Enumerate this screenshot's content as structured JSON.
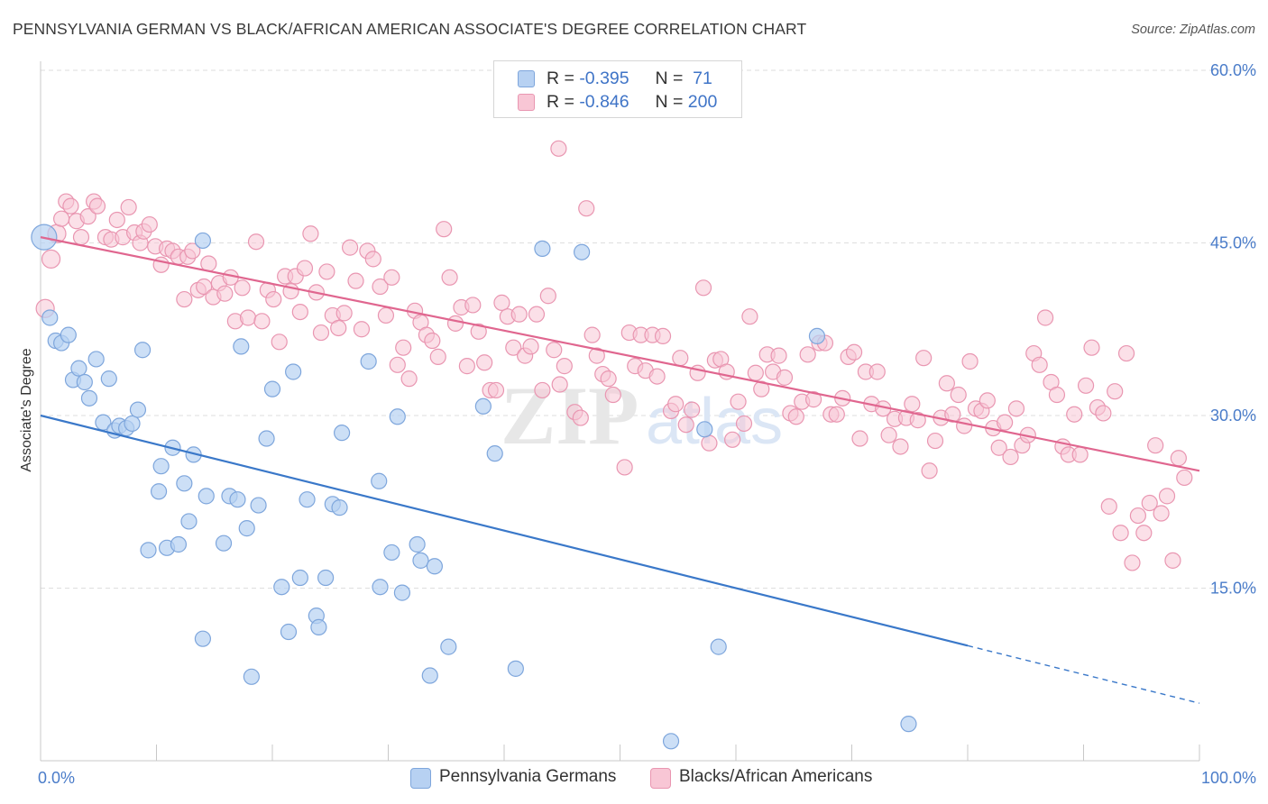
{
  "title": "PENNSYLVANIA GERMAN VS BLACK/AFRICAN AMERICAN ASSOCIATE'S DEGREE CORRELATION CHART",
  "source": "Source: ZipAtlas.com",
  "colors": {
    "blue_fill": "#b7d1f2",
    "blue_stroke": "#7ea6dc",
    "blue_line": "#3a78c9",
    "pink_fill": "#f8c6d5",
    "pink_stroke": "#e996b1",
    "pink_line": "#e0668f",
    "axis_text": "#4a7cc9",
    "grid": "#dedede"
  },
  "legend": {
    "rows": [
      {
        "r_label": "R = ",
        "r_value": "-0.395",
        "n_label": "N = ",
        "n_value": " 71",
        "color": "blue"
      },
      {
        "r_label": "R = ",
        "r_value": "-0.846",
        "n_label": "N = ",
        "n_value": "200",
        "color": "pink"
      }
    ]
  },
  "bottom_legend": [
    "Pennsylvania Germans",
    "Blacks/African Americans"
  ],
  "chart_data": {
    "type": "scatter",
    "title": "PENNSYLVANIA GERMAN VS BLACK/AFRICAN AMERICAN ASSOCIATE'S DEGREE CORRELATION CHART",
    "xlabel": "",
    "ylabel": "Associate's Degree",
    "xlim": [
      0,
      100
    ],
    "ylim": [
      0,
      60
    ],
    "x_tick_labels": [
      "0.0%",
      "100.0%"
    ],
    "y_ticks": [
      15,
      30,
      45,
      60
    ],
    "y_tick_labels": [
      "15.0%",
      "30.0%",
      "45.0%",
      "60.0%"
    ],
    "grid": true,
    "legend_placement": "top-center",
    "series": [
      {
        "name": "Pennsylvania Germans",
        "color": "blue",
        "R": -0.395,
        "N": 71,
        "trend": {
          "x0": 0,
          "y0": 30.0,
          "x1": 80,
          "y1": 10.0,
          "dashed_to_x": 100,
          "dashed_to_y": 5.0
        },
        "points": [
          [
            0.3,
            45.5
          ],
          [
            0.8,
            38.5
          ],
          [
            1.3,
            36.5
          ],
          [
            1.8,
            36.3
          ],
          [
            2.4,
            37.0
          ],
          [
            2.8,
            33.1
          ],
          [
            3.3,
            34.1
          ],
          [
            3.8,
            32.9
          ],
          [
            4.2,
            31.5
          ],
          [
            4.8,
            34.9
          ],
          [
            5.4,
            29.4
          ],
          [
            5.9,
            33.2
          ],
          [
            6.4,
            28.7
          ],
          [
            6.8,
            29.1
          ],
          [
            7.4,
            28.9
          ],
          [
            7.9,
            29.3
          ],
          [
            8.4,
            30.5
          ],
          [
            8.8,
            35.7
          ],
          [
            9.3,
            18.3
          ],
          [
            10.2,
            23.4
          ],
          [
            10.4,
            25.6
          ],
          [
            10.9,
            18.5
          ],
          [
            11.4,
            27.2
          ],
          [
            11.9,
            18.8
          ],
          [
            12.4,
            24.1
          ],
          [
            12.8,
            20.8
          ],
          [
            13.2,
            26.6
          ],
          [
            14.0,
            10.6
          ],
          [
            14.3,
            23.0
          ],
          [
            14.0,
            45.2
          ],
          [
            15.8,
            18.9
          ],
          [
            16.3,
            23.0
          ],
          [
            17.0,
            22.7
          ],
          [
            17.3,
            36.0
          ],
          [
            17.8,
            20.2
          ],
          [
            18.2,
            7.3
          ],
          [
            18.8,
            22.2
          ],
          [
            19.5,
            28.0
          ],
          [
            20.0,
            32.3
          ],
          [
            20.8,
            15.1
          ],
          [
            21.4,
            11.2
          ],
          [
            21.8,
            33.8
          ],
          [
            22.4,
            15.9
          ],
          [
            23.0,
            22.7
          ],
          [
            23.8,
            12.6
          ],
          [
            24.0,
            11.6
          ],
          [
            24.6,
            15.9
          ],
          [
            25.2,
            22.3
          ],
          [
            25.8,
            22.0
          ],
          [
            26.0,
            28.5
          ],
          [
            28.3,
            34.7
          ],
          [
            29.2,
            24.3
          ],
          [
            29.3,
            15.1
          ],
          [
            30.3,
            18.1
          ],
          [
            30.8,
            29.9
          ],
          [
            31.2,
            14.6
          ],
          [
            32.5,
            18.8
          ],
          [
            32.8,
            17.4
          ],
          [
            33.6,
            7.4
          ],
          [
            34.0,
            16.9
          ],
          [
            35.2,
            9.9
          ],
          [
            38.2,
            30.8
          ],
          [
            39.2,
            26.7
          ],
          [
            41.0,
            8.0
          ],
          [
            43.3,
            44.5
          ],
          [
            46.7,
            44.2
          ],
          [
            54.4,
            1.7
          ],
          [
            57.3,
            28.8
          ],
          [
            58.5,
            9.9
          ],
          [
            67.0,
            36.9
          ],
          [
            74.9,
            3.2
          ]
        ]
      },
      {
        "name": "Blacks/African Americans",
        "color": "pink",
        "R": -0.846,
        "N": 200,
        "trend": {
          "x0": 0,
          "y0": 45.5,
          "x1": 100,
          "y1": 25.2
        },
        "points": [
          [
            0.4,
            39.3
          ],
          [
            0.9,
            43.6
          ],
          [
            1.4,
            45.8
          ],
          [
            1.8,
            47.1
          ],
          [
            2.2,
            48.6
          ],
          [
            2.6,
            48.2
          ],
          [
            3.1,
            46.9
          ],
          [
            3.5,
            45.5
          ],
          [
            4.1,
            47.3
          ],
          [
            4.6,
            48.6
          ],
          [
            4.9,
            48.2
          ],
          [
            5.6,
            45.5
          ],
          [
            6.1,
            45.3
          ],
          [
            6.6,
            47.0
          ],
          [
            7.1,
            45.5
          ],
          [
            7.6,
            48.1
          ],
          [
            8.1,
            45.9
          ],
          [
            8.6,
            45.0
          ],
          [
            8.9,
            46.0
          ],
          [
            9.4,
            46.6
          ],
          [
            9.9,
            44.7
          ],
          [
            10.4,
            43.1
          ],
          [
            10.9,
            44.5
          ],
          [
            11.4,
            44.3
          ],
          [
            11.9,
            43.8
          ],
          [
            12.4,
            40.1
          ],
          [
            12.7,
            43.8
          ],
          [
            13.1,
            44.3
          ],
          [
            13.6,
            40.9
          ],
          [
            14.1,
            41.2
          ],
          [
            14.5,
            43.2
          ],
          [
            14.9,
            40.3
          ],
          [
            15.4,
            41.5
          ],
          [
            15.9,
            40.6
          ],
          [
            16.4,
            42.0
          ],
          [
            16.8,
            38.2
          ],
          [
            17.4,
            41.1
          ],
          [
            17.9,
            38.5
          ],
          [
            18.6,
            45.1
          ],
          [
            19.1,
            38.2
          ],
          [
            19.6,
            40.9
          ],
          [
            20.1,
            40.1
          ],
          [
            20.6,
            36.4
          ],
          [
            21.1,
            42.1
          ],
          [
            21.6,
            40.8
          ],
          [
            22.0,
            42.1
          ],
          [
            22.4,
            39.0
          ],
          [
            22.8,
            42.8
          ],
          [
            23.3,
            45.8
          ],
          [
            23.8,
            40.7
          ],
          [
            24.2,
            37.2
          ],
          [
            24.7,
            42.5
          ],
          [
            25.2,
            38.7
          ],
          [
            25.7,
            37.6
          ],
          [
            26.2,
            38.9
          ],
          [
            26.7,
            44.6
          ],
          [
            27.2,
            41.7
          ],
          [
            27.7,
            37.5
          ],
          [
            28.2,
            44.3
          ],
          [
            28.7,
            43.6
          ],
          [
            29.3,
            41.2
          ],
          [
            29.8,
            38.7
          ],
          [
            30.3,
            42.0
          ],
          [
            30.8,
            34.4
          ],
          [
            31.3,
            35.9
          ],
          [
            31.8,
            33.2
          ],
          [
            32.3,
            39.1
          ],
          [
            32.8,
            38.1
          ],
          [
            33.3,
            37.0
          ],
          [
            33.8,
            36.5
          ],
          [
            34.3,
            35.1
          ],
          [
            34.8,
            46.2
          ],
          [
            35.3,
            42.0
          ],
          [
            35.8,
            38.0
          ],
          [
            36.3,
            39.4
          ],
          [
            36.8,
            34.3
          ],
          [
            37.3,
            39.6
          ],
          [
            37.8,
            37.3
          ],
          [
            38.3,
            34.6
          ],
          [
            38.8,
            32.2
          ],
          [
            39.3,
            32.2
          ],
          [
            39.8,
            39.8
          ],
          [
            40.3,
            38.6
          ],
          [
            40.8,
            35.9
          ],
          [
            41.3,
            38.8
          ],
          [
            41.8,
            35.2
          ],
          [
            42.3,
            36.0
          ],
          [
            42.8,
            38.8
          ],
          [
            43.3,
            32.2
          ],
          [
            43.8,
            40.4
          ],
          [
            44.3,
            35.7
          ],
          [
            44.8,
            32.7
          ],
          [
            45.2,
            34.3
          ],
          [
            44.7,
            53.2
          ],
          [
            46.1,
            30.3
          ],
          [
            46.6,
            29.8
          ],
          [
            47.1,
            48.0
          ],
          [
            47.6,
            37.0
          ],
          [
            48.0,
            35.2
          ],
          [
            48.5,
            33.6
          ],
          [
            49.0,
            33.2
          ],
          [
            49.4,
            31.8
          ],
          [
            50.4,
            25.5
          ],
          [
            50.8,
            37.2
          ],
          [
            51.3,
            34.3
          ],
          [
            51.8,
            37.0
          ],
          [
            52.2,
            33.9
          ],
          [
            52.8,
            37.0
          ],
          [
            53.2,
            33.4
          ],
          [
            53.7,
            36.9
          ],
          [
            54.4,
            30.4
          ],
          [
            54.8,
            31.0
          ],
          [
            55.2,
            35.0
          ],
          [
            55.7,
            29.2
          ],
          [
            56.2,
            30.5
          ],
          [
            56.7,
            33.7
          ],
          [
            57.2,
            41.1
          ],
          [
            57.7,
            27.6
          ],
          [
            58.2,
            34.8
          ],
          [
            58.7,
            34.9
          ],
          [
            59.2,
            33.8
          ],
          [
            59.7,
            27.9
          ],
          [
            60.2,
            31.2
          ],
          [
            60.7,
            29.3
          ],
          [
            61.2,
            38.6
          ],
          [
            61.7,
            33.7
          ],
          [
            62.2,
            32.3
          ],
          [
            62.7,
            35.3
          ],
          [
            63.2,
            33.8
          ],
          [
            63.7,
            35.2
          ],
          [
            64.2,
            33.3
          ],
          [
            64.7,
            30.2
          ],
          [
            65.2,
            29.9
          ],
          [
            65.7,
            31.2
          ],
          [
            66.2,
            35.3
          ],
          [
            66.7,
            31.4
          ],
          [
            67.2,
            36.3
          ],
          [
            67.7,
            36.3
          ],
          [
            68.2,
            30.1
          ],
          [
            68.7,
            30.1
          ],
          [
            69.2,
            31.5
          ],
          [
            69.7,
            35.1
          ],
          [
            70.2,
            35.5
          ],
          [
            70.7,
            28.0
          ],
          [
            71.2,
            33.8
          ],
          [
            71.7,
            31.0
          ],
          [
            72.2,
            33.8
          ],
          [
            72.7,
            30.6
          ],
          [
            73.2,
            28.3
          ],
          [
            73.7,
            29.7
          ],
          [
            74.2,
            27.3
          ],
          [
            74.7,
            29.8
          ],
          [
            75.2,
            31.0
          ],
          [
            75.7,
            29.6
          ],
          [
            76.2,
            35.0
          ],
          [
            76.7,
            25.2
          ],
          [
            77.2,
            27.8
          ],
          [
            77.7,
            29.8
          ],
          [
            78.2,
            32.8
          ],
          [
            78.7,
            30.1
          ],
          [
            79.2,
            31.8
          ],
          [
            79.7,
            29.1
          ],
          [
            80.2,
            34.7
          ],
          [
            80.7,
            30.6
          ],
          [
            81.2,
            30.4
          ],
          [
            81.7,
            31.3
          ],
          [
            82.2,
            28.9
          ],
          [
            82.7,
            27.2
          ],
          [
            83.2,
            29.4
          ],
          [
            83.7,
            26.4
          ],
          [
            84.2,
            30.6
          ],
          [
            84.7,
            27.4
          ],
          [
            85.2,
            28.3
          ],
          [
            85.7,
            35.4
          ],
          [
            86.2,
            34.4
          ],
          [
            86.7,
            38.5
          ],
          [
            87.2,
            32.9
          ],
          [
            87.7,
            31.8
          ],
          [
            88.2,
            27.3
          ],
          [
            88.7,
            26.6
          ],
          [
            89.2,
            30.1
          ],
          [
            89.7,
            26.6
          ],
          [
            90.2,
            32.6
          ],
          [
            90.7,
            35.9
          ],
          [
            91.2,
            30.7
          ],
          [
            91.7,
            30.2
          ],
          [
            92.2,
            22.1
          ],
          [
            92.7,
            32.1
          ],
          [
            93.2,
            19.8
          ],
          [
            93.7,
            35.4
          ],
          [
            94.2,
            17.2
          ],
          [
            94.7,
            21.3
          ],
          [
            95.2,
            19.8
          ],
          [
            95.7,
            22.4
          ],
          [
            96.2,
            27.4
          ],
          [
            96.7,
            21.5
          ],
          [
            97.2,
            23.0
          ],
          [
            97.7,
            17.4
          ],
          [
            98.2,
            26.3
          ],
          [
            98.7,
            24.6
          ]
        ]
      }
    ]
  }
}
